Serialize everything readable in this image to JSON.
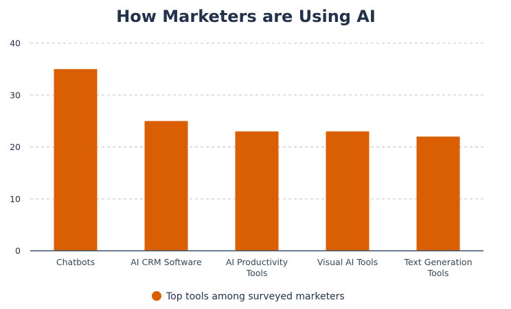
{
  "chart_data": {
    "type": "bar",
    "title": "How Marketers are Using AI",
    "categories": [
      [
        "Chatbots"
      ],
      [
        "AI CRM Software"
      ],
      [
        "AI Productivity",
        "Tools"
      ],
      [
        "Visual AI Tools"
      ],
      [
        "Text Generation",
        "Tools"
      ]
    ],
    "series": [
      {
        "name": "Top tools among surveyed marketers",
        "color": "#d95f02",
        "values": [
          35,
          25,
          23,
          23,
          22
        ]
      }
    ],
    "yticks": [
      0,
      10,
      20,
      30,
      40
    ],
    "ylim": [
      0,
      40
    ],
    "grid": true,
    "legend_position": "bottom",
    "xlabel": "",
    "ylabel": ""
  }
}
